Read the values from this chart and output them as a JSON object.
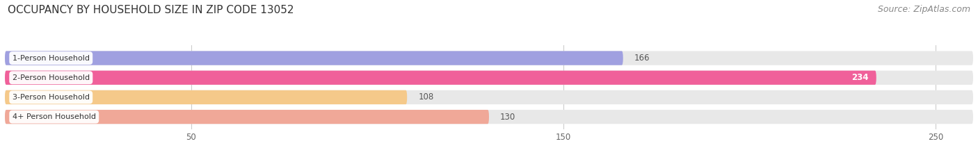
{
  "title": "OCCUPANCY BY HOUSEHOLD SIZE IN ZIP CODE 13052",
  "source": "Source: ZipAtlas.com",
  "categories": [
    "1-Person Household",
    "2-Person Household",
    "3-Person Household",
    "4+ Person Household"
  ],
  "values": [
    166,
    234,
    108,
    130
  ],
  "bar_colors": [
    "#a0a0e0",
    "#f0609a",
    "#f5c98a",
    "#f0a898"
  ],
  "bar_bg_color": "#e8e8e8",
  "fig_bg_color": "#ffffff",
  "xlim_data": [
    0,
    260
  ],
  "xticks": [
    50,
    150,
    250
  ],
  "title_fontsize": 11,
  "source_fontsize": 9,
  "value_white_threshold": 180
}
